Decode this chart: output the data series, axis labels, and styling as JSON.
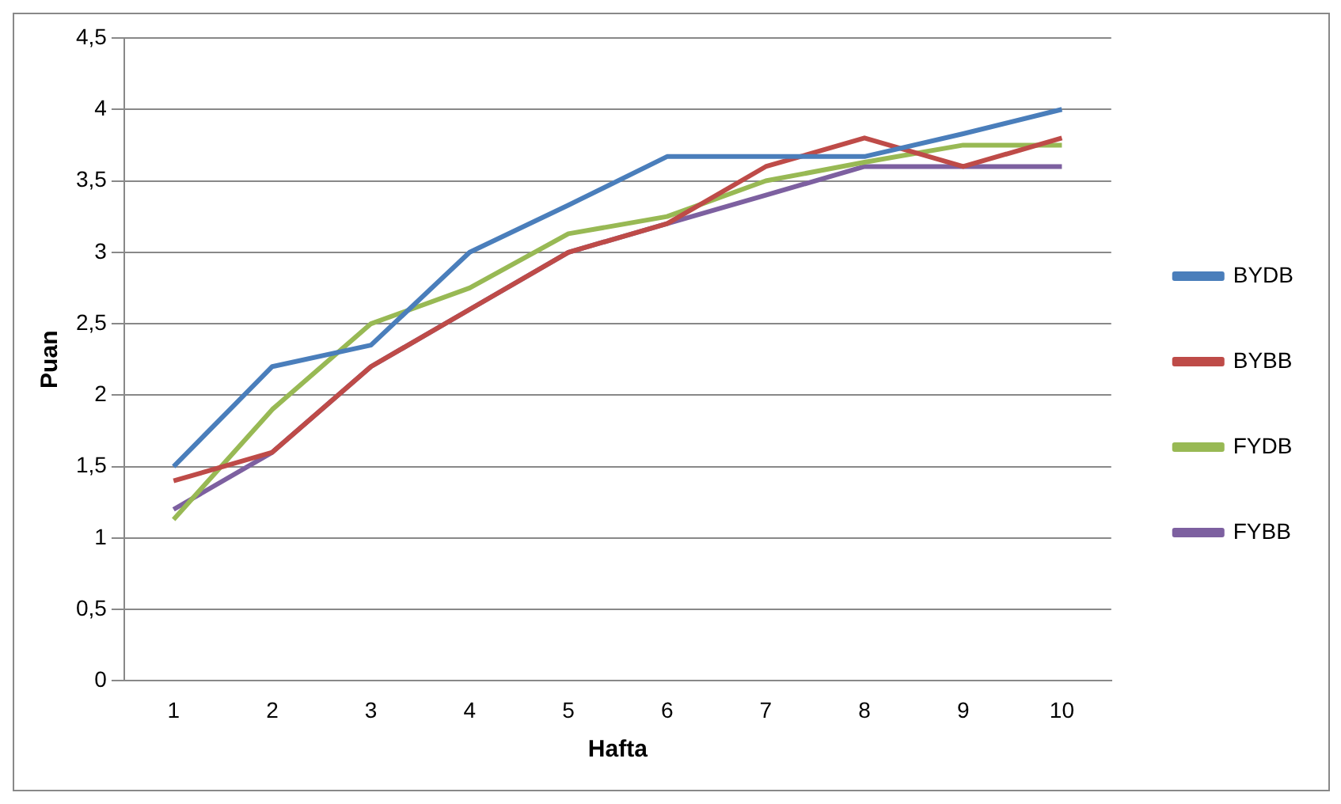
{
  "chart_data": {
    "type": "line",
    "xlabel": "Hafta",
    "ylabel": "Puan",
    "categories": [
      "1",
      "2",
      "3",
      "4",
      "5",
      "6",
      "7",
      "8",
      "9",
      "10"
    ],
    "series": [
      {
        "name": "BYDB",
        "color": "#4a7ebb",
        "values": [
          1.5,
          2.2,
          2.35,
          3.0,
          3.33,
          3.67,
          3.67,
          3.67,
          3.83,
          4.0
        ]
      },
      {
        "name": "BYBB",
        "color": "#be4b48",
        "values": [
          1.4,
          1.6,
          2.2,
          2.6,
          3.0,
          3.2,
          3.6,
          3.8,
          3.6,
          3.8
        ]
      },
      {
        "name": "FYDB",
        "color": "#98b954",
        "values": [
          1.13,
          1.9,
          2.5,
          2.75,
          3.13,
          3.25,
          3.5,
          3.63,
          3.75,
          3.75
        ]
      },
      {
        "name": "FYBB",
        "color": "#7d60a0",
        "values": [
          1.2,
          1.6,
          2.2,
          2.6,
          3.0,
          3.2,
          3.4,
          3.6,
          3.6,
          3.6
        ]
      }
    ],
    "ylim": [
      0,
      4.5
    ],
    "yticks": [
      {
        "value": 0,
        "label": "0"
      },
      {
        "value": 0.5,
        "label": "0,5"
      },
      {
        "value": 1,
        "label": "1"
      },
      {
        "value": 1.5,
        "label": "1,5"
      },
      {
        "value": 2,
        "label": "2"
      },
      {
        "value": 2.5,
        "label": "2,5"
      },
      {
        "value": 3,
        "label": "3"
      },
      {
        "value": 3.5,
        "label": "3,5"
      },
      {
        "value": 4,
        "label": "4"
      },
      {
        "value": 4.5,
        "label": "4,5"
      }
    ],
    "grid": "y",
    "legend": "right",
    "marker": "none",
    "line_style": "solid"
  }
}
